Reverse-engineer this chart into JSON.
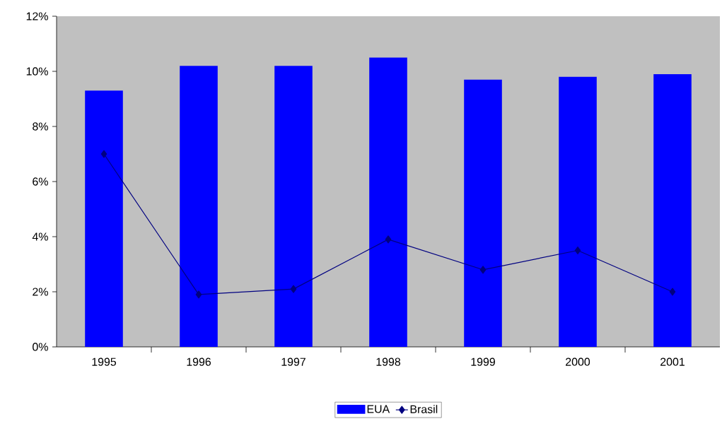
{
  "chart_data": {
    "type": "bar",
    "categories": [
      "1995",
      "1996",
      "1997",
      "1998",
      "1999",
      "2000",
      "2001"
    ],
    "series": [
      {
        "name": "EUA",
        "color": "#0000ff",
        "values": [
          9.3,
          10.2,
          10.2,
          10.5,
          9.7,
          9.8,
          9.9
        ]
      },
      {
        "name": "Brasil",
        "type": "line",
        "color": "#000080",
        "values": [
          7.0,
          1.9,
          2.1,
          3.9,
          2.8,
          3.5,
          2.0
        ]
      }
    ],
    "ylim": [
      0,
      12
    ],
    "yticks": [
      {
        "value": 0,
        "label": "0%"
      },
      {
        "value": 2,
        "label": "2%"
      },
      {
        "value": 4,
        "label": "4%"
      },
      {
        "value": 6,
        "label": "6%"
      },
      {
        "value": 8,
        "label": "8%"
      },
      {
        "value": 10,
        "label": "10%"
      },
      {
        "value": 12,
        "label": "12%"
      }
    ],
    "legend": "bottom",
    "marker": "diamond",
    "line_style": "solid"
  }
}
